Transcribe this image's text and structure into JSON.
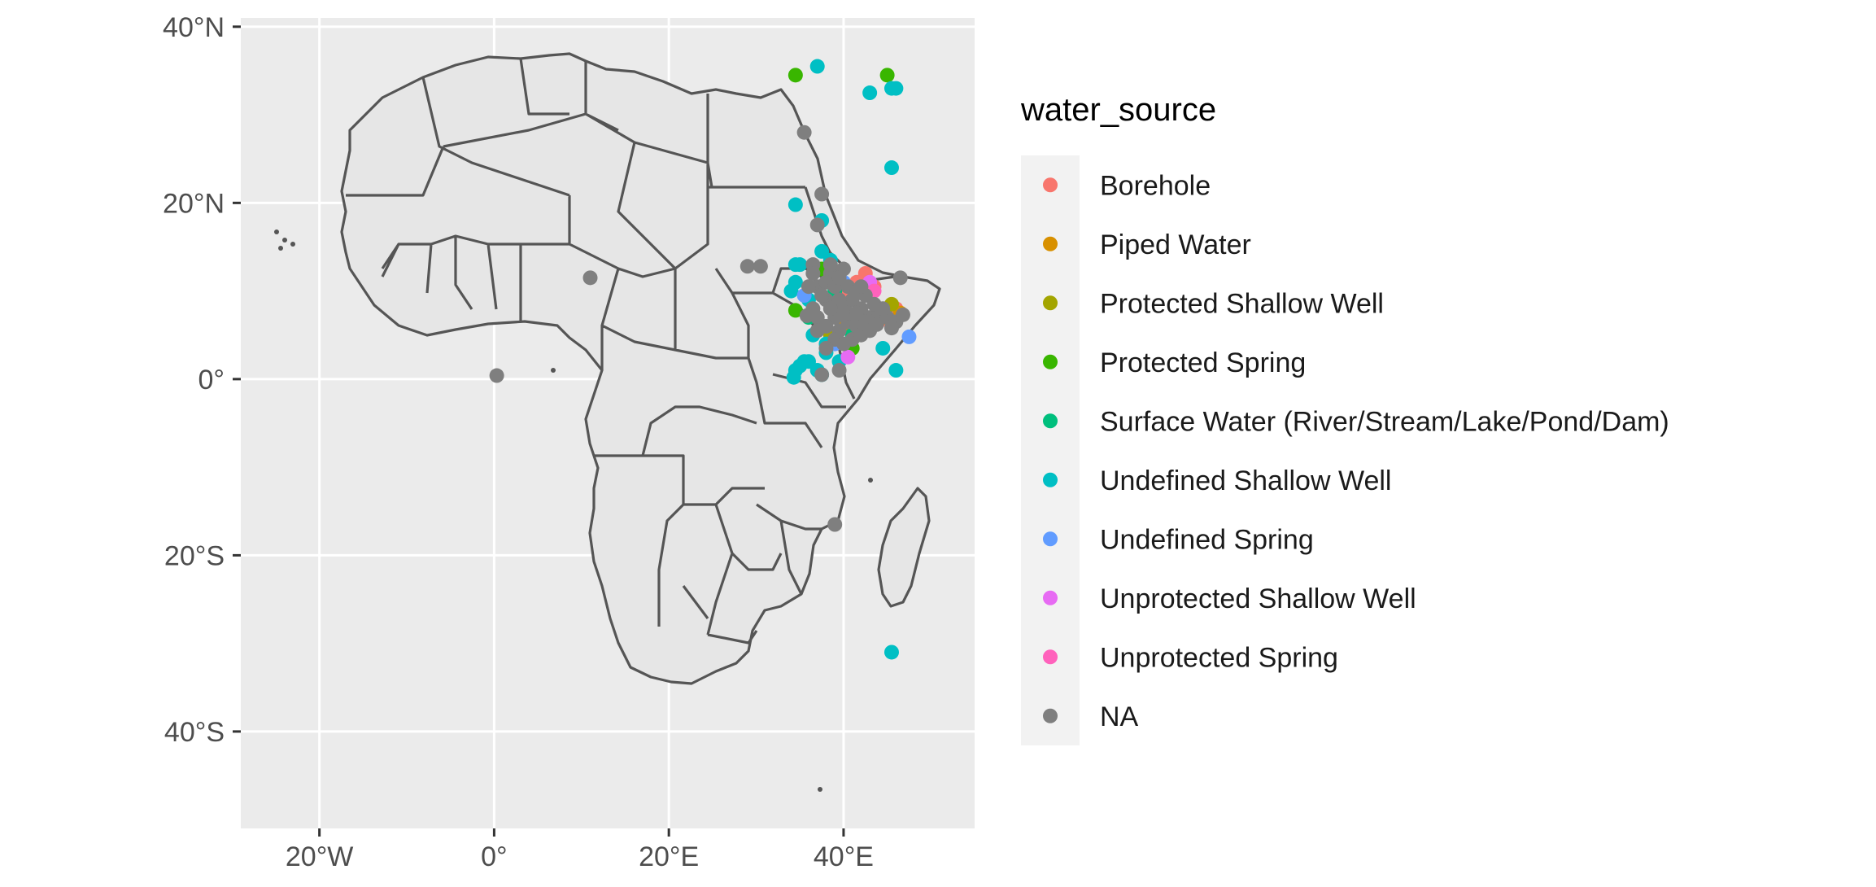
{
  "chart_data": {
    "type": "scatter",
    "title": "",
    "xlabel": "",
    "ylabel": "",
    "xlim": [
      -29,
      55
    ],
    "ylim": [
      -51,
      41
    ],
    "x_ticks": [
      {
        "value": -20,
        "label": "20°W"
      },
      {
        "value": 0,
        "label": "0°"
      },
      {
        "value": 20,
        "label": "20°E"
      },
      {
        "value": 40,
        "label": "40°E"
      }
    ],
    "y_ticks": [
      {
        "value": 40,
        "label": "40°N"
      },
      {
        "value": 20,
        "label": "20°N"
      },
      {
        "value": 0,
        "label": "0°"
      },
      {
        "value": -20,
        "label": "20°S"
      },
      {
        "value": -40,
        "label": "40°S"
      }
    ],
    "grid": true,
    "panel_background": "#ebebeb",
    "grid_color": "#ffffff",
    "basemap": "Africa country borders",
    "legend": {
      "title": "water_source",
      "placement": "right",
      "entries": [
        {
          "label": "Borehole",
          "color": "#F8766D"
        },
        {
          "label": "Piped Water",
          "color": "#D89000"
        },
        {
          "label": "Protected Shallow Well",
          "color": "#A3A500"
        },
        {
          "label": "Protected Spring",
          "color": "#39B600"
        },
        {
          "label": "Surface Water (River/Stream/Lake/Pond/Dam)",
          "color": "#00BF7D"
        },
        {
          "label": "Undefined Shallow Well",
          "color": "#00BFC4"
        },
        {
          "label": "Undefined Spring",
          "color": "#619CFF"
        },
        {
          "label": "Unprotected Shallow Well",
          "color": "#E76BF3"
        },
        {
          "label": "Unprotected Spring",
          "color": "#FF62BC"
        },
        {
          "label": "NA",
          "color": "#7F7F7F"
        }
      ]
    },
    "series": [
      {
        "name": "Borehole",
        "points": [
          [
            42.5,
            12.0
          ],
          [
            43.5,
            10.5
          ],
          [
            46.0,
            8.0
          ],
          [
            44.0,
            6.5
          ],
          [
            40.5,
            9.5
          ],
          [
            41.5,
            11.0
          ]
        ]
      },
      {
        "name": "Piped Water",
        "points": [
          [
            44.5,
            7.0
          ],
          [
            46.5,
            7.5
          ],
          [
            40.0,
            6.0
          ]
        ]
      },
      {
        "name": "Protected Shallow Well",
        "points": [
          [
            38.5,
            5.0
          ],
          [
            45.5,
            8.5
          ]
        ]
      },
      {
        "name": "Protected Spring",
        "points": [
          [
            34.5,
            34.5
          ],
          [
            45.0,
            34.5
          ],
          [
            34.5,
            7.8
          ],
          [
            41.0,
            3.5
          ],
          [
            37.5,
            12.5
          ],
          [
            43.0,
            9.5
          ]
        ]
      },
      {
        "name": "Surface Water (River/Stream/Lake/Pond/Dam)",
        "points": [
          [
            36.0,
            7.0
          ],
          [
            39.0,
            10.0
          ],
          [
            41.0,
            5.0
          ]
        ]
      },
      {
        "name": "Undefined Shallow Well",
        "points": [
          [
            37.0,
            35.5
          ],
          [
            43.0,
            32.5
          ],
          [
            45.5,
            33.0
          ],
          [
            46.0,
            33.0
          ],
          [
            45.5,
            24.0
          ],
          [
            34.5,
            19.8
          ],
          [
            37.5,
            18.0
          ],
          [
            34.5,
            13.0
          ],
          [
            35.0,
            13.0
          ],
          [
            38.5,
            13.5
          ],
          [
            34.0,
            10.0
          ],
          [
            34.5,
            11.0
          ],
          [
            36.0,
            9.0
          ],
          [
            34.5,
            1.0
          ],
          [
            35.0,
            1.5
          ],
          [
            35.5,
            2.0
          ],
          [
            36.0,
            2.0
          ],
          [
            37.5,
            0.5
          ],
          [
            37.0,
            1.0
          ],
          [
            38.0,
            3.0
          ],
          [
            39.5,
            2.0
          ],
          [
            44.5,
            3.5
          ],
          [
            46.0,
            1.0
          ],
          [
            45.5,
            -31.0
          ],
          [
            36.5,
            5.0
          ],
          [
            38.0,
            4.0
          ],
          [
            34.3,
            0.2
          ],
          [
            37.5,
            14.5
          ]
        ]
      },
      {
        "name": "Undefined Spring",
        "points": [
          [
            47.5,
            4.8
          ],
          [
            35.5,
            9.5
          ],
          [
            40.0,
            11.0
          ],
          [
            39.0,
            4.0
          ]
        ]
      },
      {
        "name": "Unprotected Shallow Well",
        "points": [
          [
            43.0,
            11.0
          ],
          [
            42.0,
            5.5
          ],
          [
            40.5,
            2.5
          ]
        ]
      },
      {
        "name": "Unprotected Spring",
        "points": [
          [
            39.5,
            7.5
          ],
          [
            43.5,
            10.0
          ]
        ]
      },
      {
        "name": "NA",
        "points": [
          [
            35.5,
            28.0
          ],
          [
            37.5,
            21.0
          ],
          [
            37.0,
            17.5
          ],
          [
            29.0,
            12.8
          ],
          [
            30.5,
            12.8
          ],
          [
            11.0,
            11.5
          ],
          [
            0.3,
            0.4
          ],
          [
            46.5,
            11.5
          ],
          [
            39.0,
            -16.5
          ],
          [
            39.5,
            1.0
          ],
          [
            37.5,
            0.5
          ],
          [
            36.5,
            13.0
          ],
          [
            37.0,
            10.5
          ],
          [
            38.0,
            9.0
          ],
          [
            38.5,
            12.0
          ],
          [
            39.0,
            7.0
          ],
          [
            40.0,
            8.0
          ],
          [
            41.0,
            9.0
          ],
          [
            42.0,
            8.0
          ],
          [
            43.0,
            7.0
          ],
          [
            44.0,
            7.5
          ],
          [
            45.0,
            7.0
          ],
          [
            46.0,
            6.5
          ],
          [
            40.5,
            6.5
          ],
          [
            39.5,
            5.5
          ],
          [
            41.5,
            6.0
          ],
          [
            42.5,
            6.5
          ],
          [
            38.0,
            11.0
          ],
          [
            37.5,
            9.5
          ],
          [
            39.0,
            10.5
          ],
          [
            40.5,
            10.5
          ],
          [
            41.5,
            10.0
          ],
          [
            42.5,
            9.5
          ],
          [
            43.5,
            8.5
          ],
          [
            44.5,
            8.0
          ],
          [
            36.5,
            8.0
          ],
          [
            37.0,
            7.0
          ],
          [
            38.0,
            6.0
          ],
          [
            39.0,
            4.5
          ],
          [
            40.0,
            4.0
          ],
          [
            41.0,
            4.5
          ],
          [
            42.0,
            5.0
          ],
          [
            43.0,
            5.5
          ],
          [
            36.5,
            12.0
          ],
          [
            38.5,
            13.0
          ],
          [
            40.0,
            12.5
          ],
          [
            39.5,
            9.0
          ],
          [
            40.5,
            7.5
          ],
          [
            41.5,
            7.5
          ],
          [
            42.0,
            10.5
          ],
          [
            37.0,
            5.5
          ],
          [
            38.5,
            8.0
          ],
          [
            39.5,
            11.5
          ],
          [
            36.0,
            10.5
          ],
          [
            35.8,
            7.2
          ],
          [
            38.0,
            3.5
          ],
          [
            43.8,
            6.2
          ],
          [
            45.5,
            5.8
          ],
          [
            46.8,
            7.3
          ]
        ]
      }
    ]
  }
}
